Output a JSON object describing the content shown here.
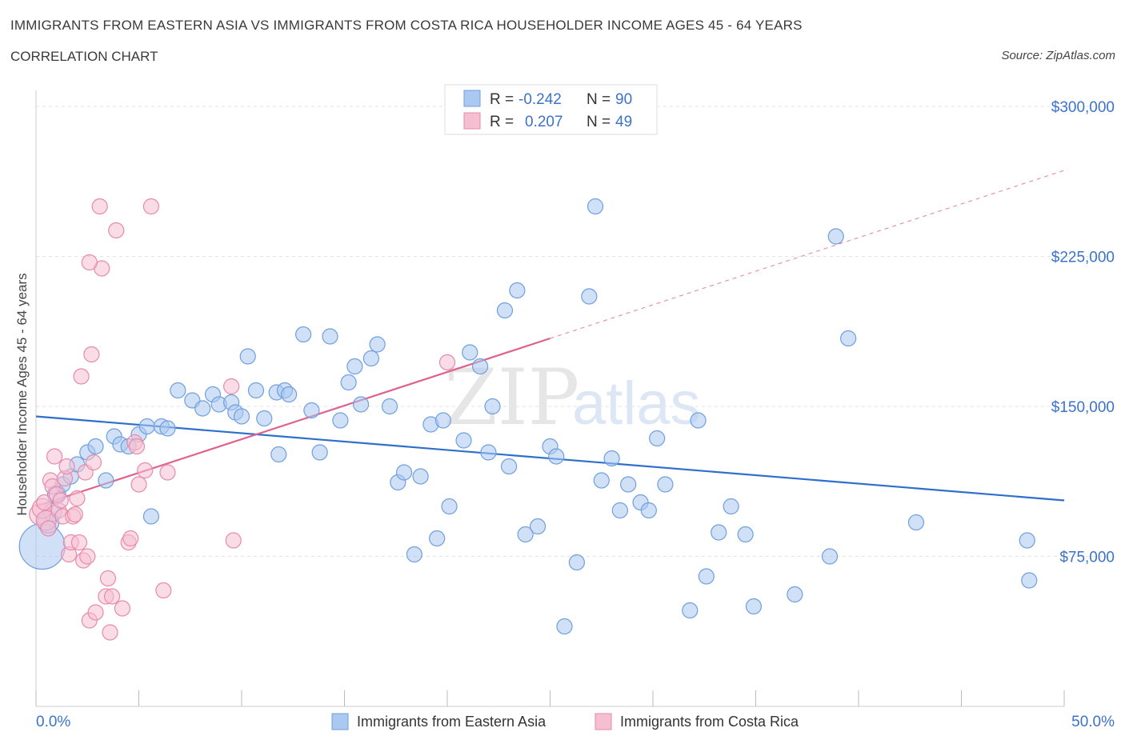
{
  "header": {
    "title": "IMMIGRANTS FROM EASTERN ASIA VS IMMIGRANTS FROM COSTA RICA HOUSEHOLDER INCOME AGES 45 - 64 YEARS",
    "subtitle": "CORRELATION CHART",
    "source": "Source: ZipAtlas.com"
  },
  "watermark": {
    "part1": "ZIP",
    "part2": "atlas"
  },
  "stats_legend": [
    {
      "r_label": "R =",
      "r_value": "-0.242",
      "n_label": "N =",
      "n_value": "90"
    },
    {
      "r_label": "R =",
      "r_value": "0.207",
      "n_label": "N =",
      "n_value": "49"
    }
  ],
  "colors": {
    "blue_fill": "#aac8f0",
    "blue_stroke": "#6f9fde",
    "blue_line": "#2e6fce",
    "pink_fill": "#f6bfd1",
    "pink_stroke": "#e88aab",
    "pink_line": "#e0628f",
    "axis_text": "#3b73c9",
    "grid": "#e3e3e3"
  },
  "chart_data": {
    "type": "scatter",
    "title": "IMMIGRANTS FROM EASTERN ASIA VS IMMIGRANTS FROM COSTA RICA HOUSEHOLDER INCOME AGES 45 - 64 YEARS",
    "xlabel": "",
    "ylabel": "Householder Income Ages 45 - 64 years",
    "xlim": [
      0,
      50
    ],
    "ylim": [
      0,
      300000
    ],
    "x_tick_labels": [
      "0.0%",
      "50.0%"
    ],
    "y_ticks": [
      75000,
      150000,
      225000,
      300000
    ],
    "y_tick_labels": [
      "$75,000",
      "$150,000",
      "$225,000",
      "$300,000"
    ],
    "grid": true,
    "legend_position": "bottom",
    "series": [
      {
        "name": "Immigrants from Eastern Asia",
        "color": "#aac8f0",
        "trend": {
          "x": [
            0,
            50
          ],
          "y": [
            145000,
            103000
          ],
          "style": "solid"
        },
        "points": [
          [
            0.3,
            80000,
            3
          ],
          [
            0.6,
            92000,
            1.4
          ],
          [
            0.8,
            97000,
            1.2
          ],
          [
            1.0,
            106000,
            1.2
          ],
          [
            1.3,
            111000,
            1
          ],
          [
            1.7,
            115000,
            1
          ],
          [
            2.0,
            121000,
            1
          ],
          [
            2.5,
            127000,
            1
          ],
          [
            2.9,
            130000,
            1
          ],
          [
            3.4,
            113000,
            1
          ],
          [
            3.8,
            135000,
            1
          ],
          [
            4.1,
            131000,
            1
          ],
          [
            4.5,
            130000,
            1
          ],
          [
            5.0,
            136000,
            1
          ],
          [
            5.4,
            140000,
            1
          ],
          [
            5.6,
            95000,
            1
          ],
          [
            6.1,
            140000,
            1
          ],
          [
            6.4,
            139000,
            1
          ],
          [
            6.9,
            158000,
            1
          ],
          [
            7.6,
            153000,
            1
          ],
          [
            8.1,
            149000,
            1
          ],
          [
            8.6,
            156000,
            1
          ],
          [
            8.9,
            151000,
            1
          ],
          [
            9.5,
            152000,
            1
          ],
          [
            9.7,
            147000,
            1
          ],
          [
            10.0,
            145000,
            1
          ],
          [
            10.3,
            175000,
            1
          ],
          [
            10.7,
            158000,
            1
          ],
          [
            11.1,
            144000,
            1
          ],
          [
            11.7,
            157000,
            1
          ],
          [
            12.1,
            158000,
            1
          ],
          [
            12.3,
            156000,
            1
          ],
          [
            11.8,
            126000,
            1
          ],
          [
            13.0,
            186000,
            1
          ],
          [
            13.4,
            148000,
            1
          ],
          [
            13.8,
            127000,
            1
          ],
          [
            14.3,
            185000,
            1
          ],
          [
            14.8,
            143000,
            1
          ],
          [
            15.2,
            162000,
            1
          ],
          [
            15.5,
            170000,
            1
          ],
          [
            15.8,
            151000,
            1
          ],
          [
            16.3,
            174000,
            1
          ],
          [
            16.6,
            181000,
            1
          ],
          [
            17.2,
            150000,
            1
          ],
          [
            17.6,
            112000,
            1
          ],
          [
            17.9,
            117000,
            1
          ],
          [
            18.4,
            76000,
            1
          ],
          [
            18.7,
            115000,
            1
          ],
          [
            19.2,
            141000,
            1
          ],
          [
            19.5,
            84000,
            1
          ],
          [
            19.8,
            143000,
            1
          ],
          [
            20.1,
            100000,
            1
          ],
          [
            20.8,
            133000,
            1
          ],
          [
            21.1,
            177000,
            1
          ],
          [
            21.6,
            170000,
            1
          ],
          [
            22.0,
            127000,
            1
          ],
          [
            22.2,
            150000,
            1
          ],
          [
            22.8,
            198000,
            1
          ],
          [
            23.0,
            120000,
            1
          ],
          [
            23.4,
            208000,
            1
          ],
          [
            23.8,
            86000,
            1
          ],
          [
            24.4,
            90000,
            1
          ],
          [
            25.0,
            130000,
            1
          ],
          [
            25.3,
            125000,
            1
          ],
          [
            25.7,
            40000,
            1
          ],
          [
            26.3,
            72000,
            1
          ],
          [
            27.2,
            250000,
            1
          ],
          [
            26.9,
            205000,
            1
          ],
          [
            27.5,
            113000,
            1
          ],
          [
            28.0,
            124000,
            1
          ],
          [
            28.4,
            98000,
            1
          ],
          [
            28.8,
            111000,
            1
          ],
          [
            29.4,
            102000,
            1
          ],
          [
            29.8,
            98000,
            1
          ],
          [
            30.2,
            134000,
            1
          ],
          [
            30.6,
            111000,
            1
          ],
          [
            31.8,
            48000,
            1
          ],
          [
            32.2,
            143000,
            1
          ],
          [
            32.6,
            65000,
            1
          ],
          [
            33.2,
            87000,
            1
          ],
          [
            33.8,
            100000,
            1
          ],
          [
            34.5,
            86000,
            1
          ],
          [
            34.9,
            50000,
            1
          ],
          [
            36.9,
            56000,
            1
          ],
          [
            38.6,
            75000,
            1
          ],
          [
            38.9,
            235000,
            1
          ],
          [
            39.5,
            184000,
            1
          ],
          [
            42.8,
            92000,
            1
          ],
          [
            48.2,
            83000,
            1
          ],
          [
            48.3,
            63000,
            1
          ]
        ]
      },
      {
        "name": "Immigrants from Costa Rica",
        "color": "#f6bfd1",
        "trend": {
          "x": [
            0,
            25
          ],
          "y": [
            100000,
            184000
          ],
          "style": "solid",
          "extension": {
            "x": [
              25,
              50
            ],
            "y": [
              184000,
              268000
            ],
            "style": "dashed"
          }
        },
        "points": [
          [
            0.2,
            96000,
            1.4
          ],
          [
            0.3,
            99000,
            1.3
          ],
          [
            0.4,
            102000,
            1
          ],
          [
            0.5,
            93000,
            1.3
          ],
          [
            0.6,
            89000,
            1
          ],
          [
            0.7,
            113000,
            1
          ],
          [
            0.8,
            110000,
            1
          ],
          [
            0.9,
            125000,
            1
          ],
          [
            1.0,
            106000,
            1
          ],
          [
            1.1,
            98000,
            1
          ],
          [
            1.2,
            103000,
            1
          ],
          [
            1.3,
            95000,
            1
          ],
          [
            1.4,
            114000,
            1
          ],
          [
            1.5,
            120000,
            1
          ],
          [
            1.6,
            76000,
            1
          ],
          [
            1.7,
            82000,
            1
          ],
          [
            1.8,
            95000,
            1
          ],
          [
            1.9,
            96000,
            1
          ],
          [
            2.0,
            104000,
            1
          ],
          [
            2.1,
            82000,
            1
          ],
          [
            2.2,
            165000,
            1
          ],
          [
            2.3,
            73000,
            1
          ],
          [
            2.4,
            117000,
            1
          ],
          [
            2.5,
            75000,
            1
          ],
          [
            2.6,
            43000,
            1
          ],
          [
            2.7,
            176000,
            1
          ],
          [
            2.8,
            122000,
            1
          ],
          [
            2.9,
            47000,
            1
          ],
          [
            3.1,
            250000,
            1
          ],
          [
            3.2,
            219000,
            1
          ],
          [
            3.4,
            55000,
            1
          ],
          [
            3.5,
            64000,
            1
          ],
          [
            3.6,
            37000,
            1
          ],
          [
            3.7,
            55000,
            1
          ],
          [
            3.9,
            238000,
            1
          ],
          [
            4.2,
            49000,
            1
          ],
          [
            4.5,
            82000,
            1
          ],
          [
            4.6,
            84000,
            1
          ],
          [
            4.8,
            132000,
            1
          ],
          [
            5.0,
            111000,
            1
          ],
          [
            5.3,
            118000,
            1
          ],
          [
            5.6,
            250000,
            1
          ],
          [
            6.2,
            58000,
            1
          ],
          [
            6.4,
            117000,
            1
          ],
          [
            9.5,
            160000,
            1
          ],
          [
            9.6,
            83000,
            1
          ],
          [
            20.0,
            172000,
            1
          ],
          [
            2.6,
            222000,
            1
          ],
          [
            4.9,
            130000,
            1
          ]
        ]
      }
    ]
  },
  "bottom_legend": [
    {
      "label": "Immigrants from Eastern Asia"
    },
    {
      "label": "Immigrants from Costa Rica"
    }
  ]
}
